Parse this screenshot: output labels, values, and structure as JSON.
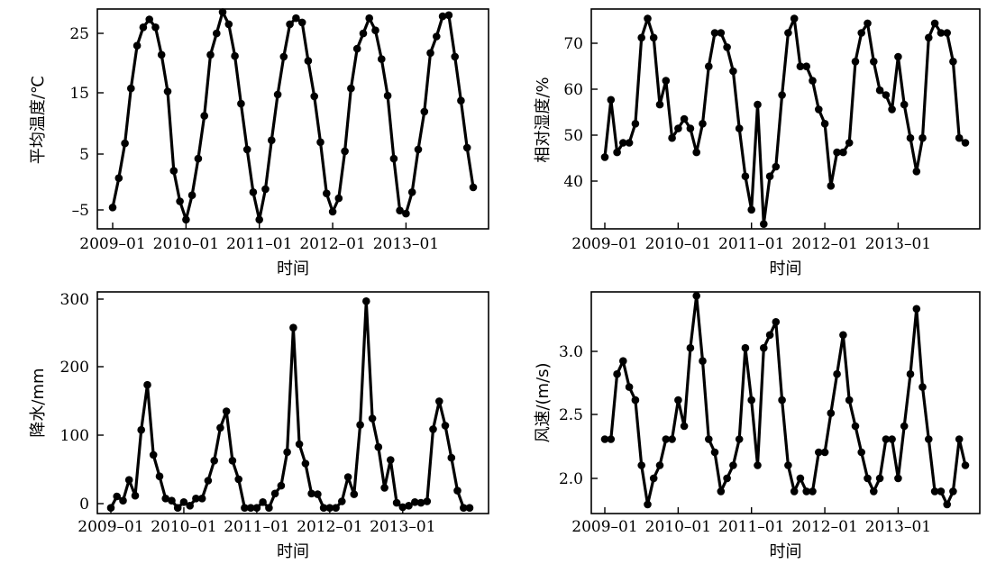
{
  "chart_data": [
    {
      "type": "line",
      "xlabel": "时间",
      "ylabel": "平均温度/℃",
      "x_ticks": [
        "2009–01",
        "2010–01",
        "2011–01",
        "2012–01",
        "2013–01"
      ],
      "y_ticks": [
        "25",
        "15",
        "5",
        "–5"
      ],
      "ylim": [
        -8,
        28
      ],
      "x_start": "2009–01",
      "series": [
        {
          "values": [
            -4.5,
            0.3,
            6,
            15,
            22,
            25,
            26.3,
            25,
            20.5,
            14.5,
            1.5,
            -3.5,
            -6.5,
            -2.5,
            3.5,
            10.5,
            20.5,
            24,
            27.5,
            25.5,
            20.3,
            12.5,
            5,
            -2,
            -6.5,
            -1.5,
            6.5,
            14,
            20.2,
            25.5,
            26.5,
            25.8,
            19.5,
            13.7,
            6.2,
            -2.2,
            -5.2,
            -3,
            4.7,
            15,
            21.5,
            24,
            26.5,
            24.5,
            19.8,
            13.8,
            3.5,
            -5,
            -5.5,
            -2,
            5,
            11.2,
            20.8,
            23.5,
            26.8,
            27,
            20.2,
            13,
            5.3,
            -1.2
          ]
        }
      ]
    },
    {
      "type": "line",
      "xlabel": "时间",
      "ylabel": "相对湿度/%",
      "x_ticks": [
        "2009–01",
        "2010–01",
        "2011–01",
        "2012–01",
        "2013–01"
      ],
      "y_ticks": [
        "70",
        "60",
        "50",
        "40"
      ],
      "ylim": [
        31,
        77
      ],
      "x_start": "2009–01",
      "series": [
        {
          "values": [
            46,
            58,
            47,
            49,
            49,
            53,
            71,
            75,
            71,
            57,
            62,
            50,
            52,
            54,
            52,
            47,
            53,
            65,
            72,
            72,
            69,
            64,
            52,
            42,
            35,
            57,
            32,
            42,
            44,
            59,
            72,
            75,
            65,
            65,
            62,
            56,
            53,
            40,
            47,
            47,
            49,
            66,
            72,
            74,
            66,
            60,
            59,
            56,
            67,
            57,
            50,
            43,
            50,
            71,
            74,
            72,
            72,
            66,
            50,
            49
          ]
        }
      ]
    },
    {
      "type": "line",
      "xlabel": "时间",
      "ylabel": "降水/mm",
      "x_ticks": [
        "2009–01",
        "2010–01",
        "2011–01",
        "2012–01",
        "2013–01"
      ],
      "y_ticks": [
        "300",
        "200",
        "100",
        "0"
      ],
      "ylim": [
        -10,
        300
      ],
      "x_start": "2009–01",
      "series": [
        {
          "values": [
            -2,
            14,
            8,
            37,
            15,
            107,
            170,
            72,
            42,
            11,
            8,
            -2,
            6,
            1,
            11,
            11,
            36,
            64,
            110,
            133,
            64,
            38,
            -2,
            -2,
            -2,
            6,
            -2,
            18,
            29,
            76,
            250,
            87,
            60,
            18,
            17,
            -2,
            -2,
            -2,
            7,
            41,
            17,
            114,
            287,
            123,
            83,
            26,
            65,
            5,
            -1,
            1,
            6,
            5,
            7,
            108,
            147,
            113,
            68,
            22,
            -2,
            -2
          ]
        }
      ]
    },
    {
      "type": "line",
      "xlabel": "时间",
      "ylabel": "风速/(m/s)",
      "x_ticks": [
        "2009–01",
        "2010–01",
        "2011–01",
        "2012–01",
        "2013–01"
      ],
      "y_ticks": [
        "3.0",
        "2.5",
        "2.0"
      ],
      "ylim": [
        1.73,
        3.43
      ],
      "x_start": "2009–01",
      "series": [
        {
          "values": [
            2.3,
            2.3,
            2.8,
            2.9,
            2.7,
            2.6,
            2.1,
            1.8,
            2.0,
            2.1,
            2.3,
            2.3,
            2.6,
            2.4,
            3.0,
            3.4,
            2.9,
            2.3,
            2.2,
            1.9,
            2.0,
            2.1,
            2.3,
            3.0,
            2.6,
            2.1,
            3.0,
            3.1,
            3.2,
            2.6,
            2.1,
            1.9,
            2.0,
            1.9,
            1.9,
            2.2,
            2.2,
            2.5,
            2.8,
            3.1,
            2.6,
            2.4,
            2.2,
            2.0,
            1.9,
            2.0,
            2.3,
            2.3,
            2.0,
            2.4,
            2.8,
            3.3,
            2.7,
            2.3,
            1.9,
            1.9,
            1.8,
            1.9,
            2.3,
            2.1
          ]
        }
      ]
    }
  ]
}
